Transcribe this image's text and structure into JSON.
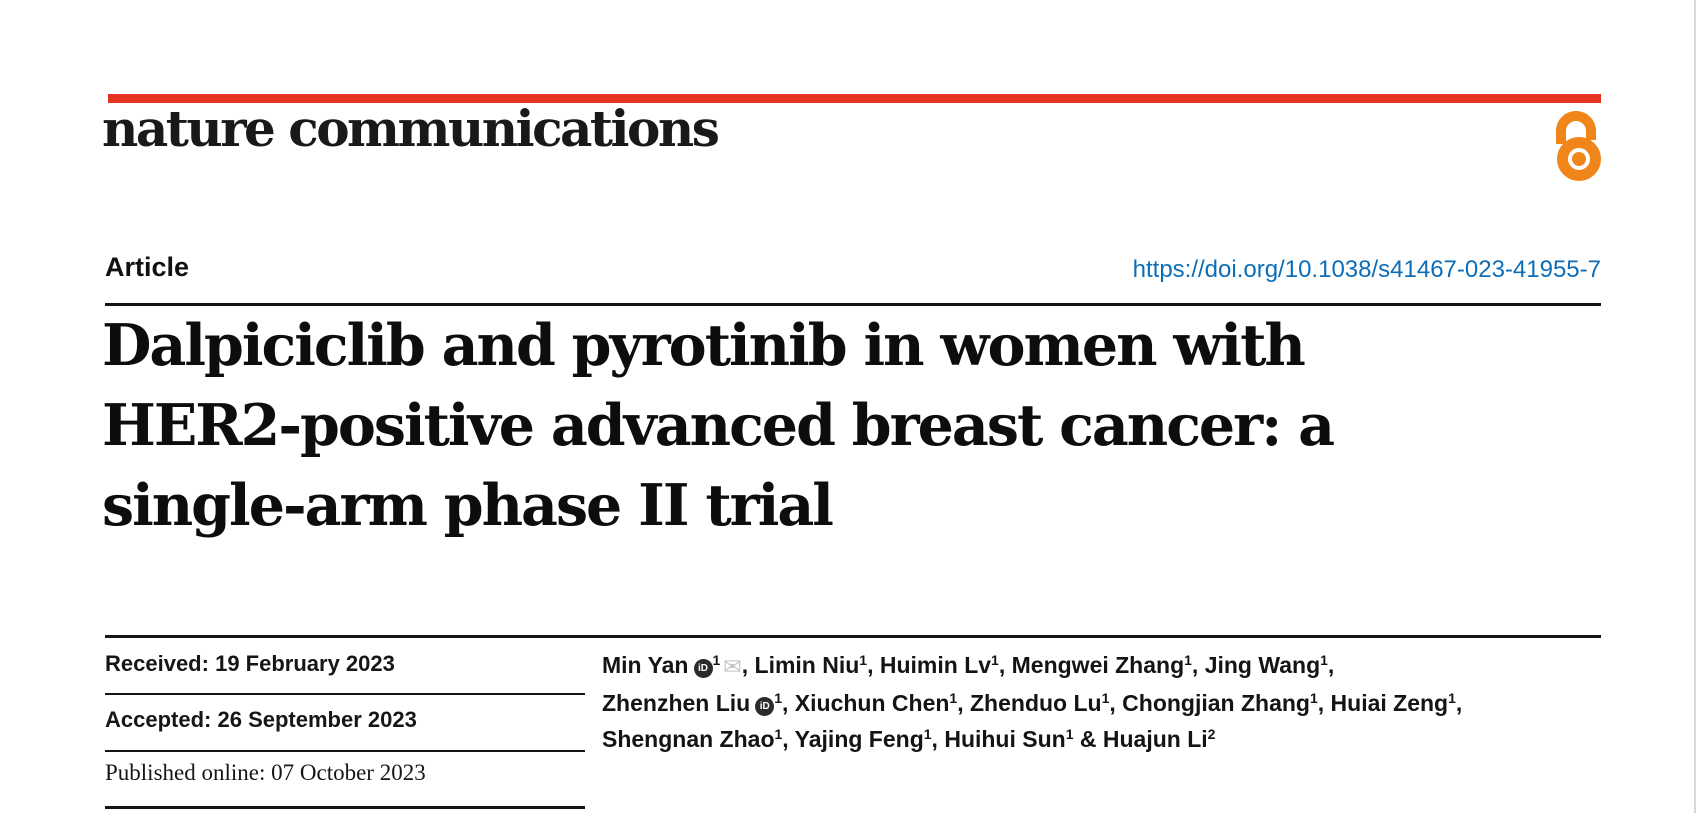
{
  "page": {
    "journal_logo": "nature communications",
    "article_label": "Article",
    "doi": "https://doi.org/10.1038/s41467-023-41955-7",
    "colors": {
      "brand_red": "#e63323",
      "link_blue": "#0d6eb8",
      "open_access_orange": "#f08519",
      "text_black": "#141414"
    }
  },
  "title": {
    "lines": [
      "Dalpiciclib and pyrotinib in women with",
      "HER2-positive advanced breast cancer: a",
      "single-arm phase II trial"
    ]
  },
  "dates": [
    {
      "label": "Received:",
      "value": "19 February 2023"
    },
    {
      "label": "Accepted:",
      "value": "26 September 2023"
    },
    {
      "label": "Published online:",
      "value": "07 October 2023"
    }
  ],
  "authors": {
    "orcid_glyph": "iD",
    "email_glyph": "✉",
    "lines": [
      [
        {
          "name": "Min Yan",
          "orcid": true,
          "sup": "1",
          "email": true,
          "trail": ", "
        },
        {
          "name": "Limin Niu",
          "sup": "1",
          "trail": ", "
        },
        {
          "name": "Huimin Lv",
          "sup": "1",
          "trail": ", "
        },
        {
          "name": "Mengwei Zhang",
          "sup": "1",
          "trail": ", "
        },
        {
          "name": "Jing Wang",
          "sup": "1",
          "trail": ","
        }
      ],
      [
        {
          "name": "Zhenzhen Liu",
          "orcid": true,
          "sup": "1",
          "trail": ", "
        },
        {
          "name": "Xiuchun Chen",
          "sup": "1",
          "trail": ", "
        },
        {
          "name": "Zhenduo Lu",
          "sup": "1",
          "trail": ", "
        },
        {
          "name": "Chongjian Zhang",
          "sup": "1",
          "trail": ", "
        },
        {
          "name": "Huiai Zeng",
          "sup": "1",
          "trail": ","
        }
      ],
      [
        {
          "name": "Shengnan Zhao",
          "sup": "1",
          "trail": ", "
        },
        {
          "name": "Yajing Feng",
          "sup": "1",
          "trail": ", "
        },
        {
          "name": "Huihui Sun",
          "sup": "1",
          "trail": " & "
        },
        {
          "name": "Huajun Li",
          "sup": "2",
          "trail": ""
        }
      ]
    ]
  }
}
